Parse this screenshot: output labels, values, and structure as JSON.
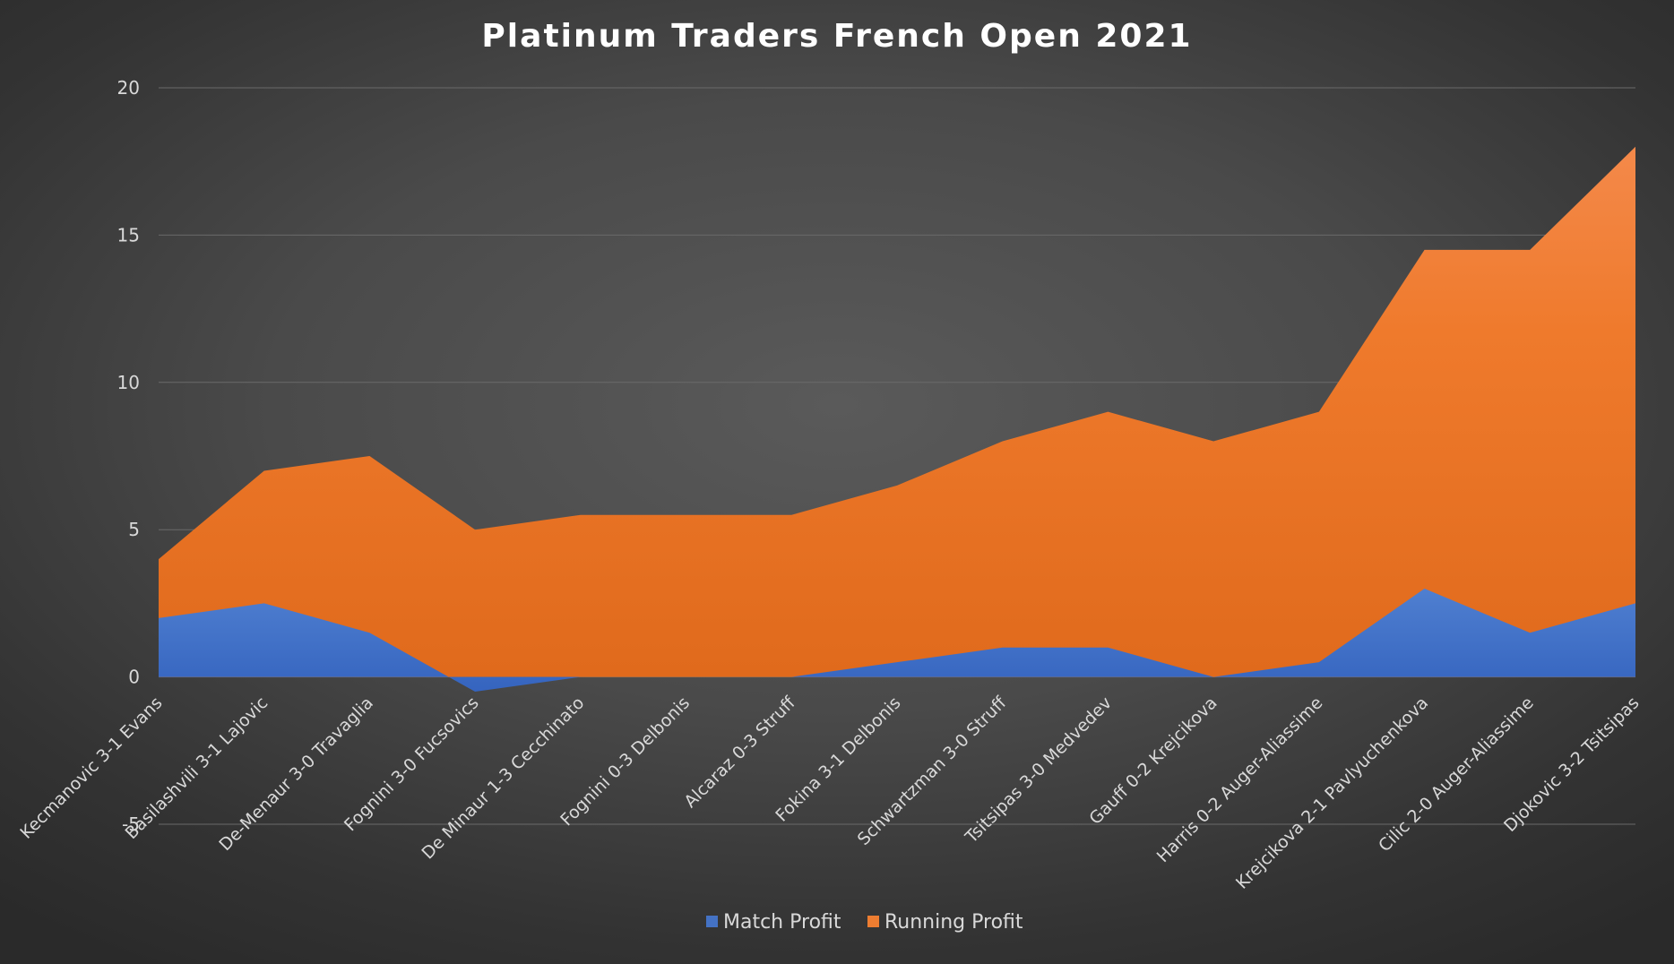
{
  "chart_data": {
    "type": "area",
    "title": "Platinum Traders French Open 2021",
    "xlabel": "",
    "ylabel": "",
    "ylim": [
      -5,
      20
    ],
    "yticks": [
      20,
      15,
      10,
      5,
      0,
      -5
    ],
    "grid": true,
    "legend_position": "bottom",
    "categories": [
      "Kecmanovic 3-1 Evans",
      "Basilashvili 3-1 Lajovic",
      "De-Menaur 3-0 Travaglia",
      "Fognini 3-0 Fucsovics",
      "De Minaur 1-3 Cecchinato",
      "Fognini 0-3 Delbonis",
      "Alcaraz 0-3 Struff",
      "Fokina 3-1 Delbonis",
      "Schwartzman 3-0 Struff",
      "Tsitsipas 3-0 Medvedev",
      "Gauff 0-2 Krejcikova",
      "Harris 0-2 Auger-Aliassime",
      "Krejcikova 2-1 Pavlyuchenkova",
      "Cilic 2-0 Auger-Aliassime",
      "Djokovic 3-2 Tsitsipas"
    ],
    "series": [
      {
        "name": "Match Profit",
        "color": "#4472c4",
        "values": [
          2,
          2.5,
          1.5,
          -0.5,
          0,
          0,
          0,
          0.5,
          1,
          1,
          0,
          0.5,
          3,
          1.5,
          2.5
        ]
      },
      {
        "name": "Running Profit",
        "color": "#ed7d31",
        "values": [
          4,
          7,
          7.5,
          5,
          5.5,
          5.5,
          5.5,
          6.5,
          8,
          9,
          8,
          9,
          14.5,
          14.5,
          18
        ]
      }
    ]
  }
}
